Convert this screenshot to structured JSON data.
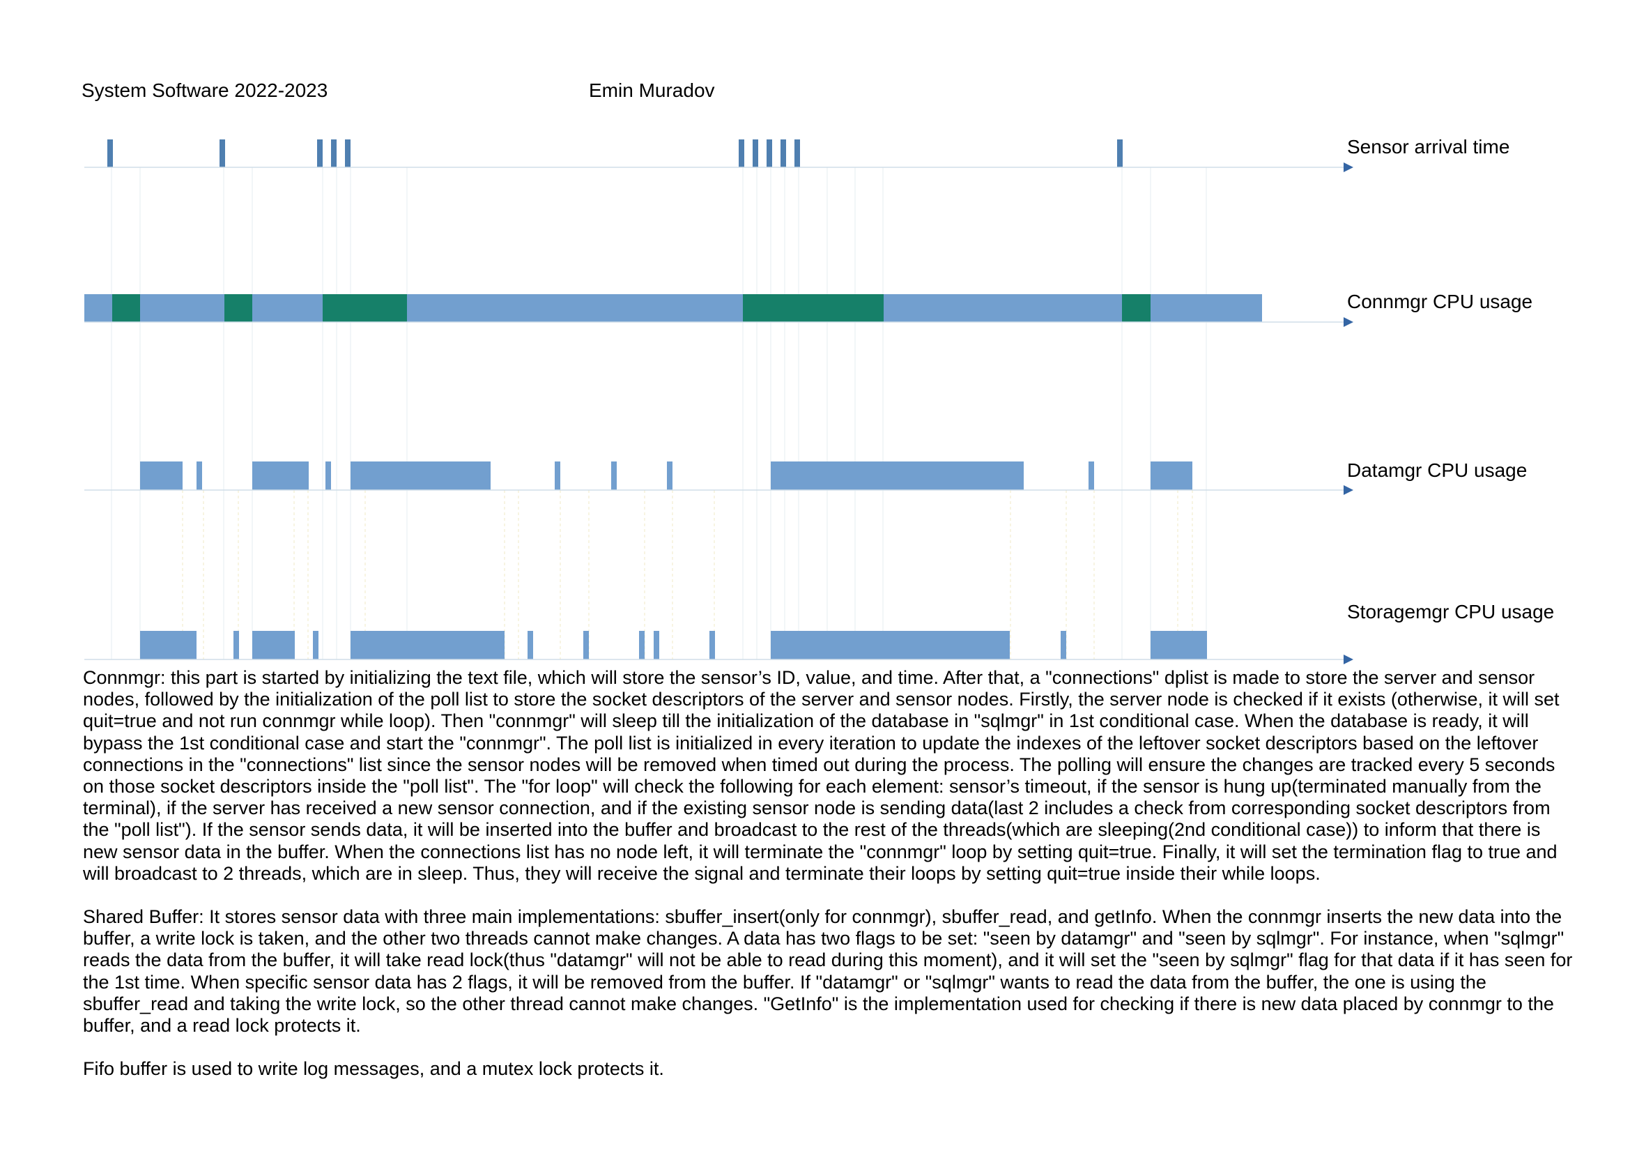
{
  "header": {
    "course": "System Software 2022-2023",
    "author": "Emin Muradov"
  },
  "colors": {
    "blue": "#729fcf",
    "mark": "#4f7fb0",
    "green": "#168069",
    "axis": "#d0dde8",
    "arrow": "#3465a4"
  },
  "tracks": [
    {
      "label": "Sensor arrival time"
    },
    {
      "label": "Connmgr CPU usage"
    },
    {
      "label": "Datamgr CPU usage"
    },
    {
      "label": "Storagemgr CPU usage"
    }
  ],
  "paragraphs": [
    "Connmgr: this part is started by initializing the text file, which will store the sensor’s ID, value, and time. After that, a \"connections\" dplist is made to store the server and sensor nodes, followed by the initialization of the poll list to store the socket descriptors of the server and sensor nodes. Firstly, the server node is checked if it exists (otherwise, it will set quit=true and not run connmgr while loop). Then \"connmgr\" will sleep till the initialization of the database in \"sqlmgr\" in 1st conditional case. When the database is ready, it will bypass the 1st conditional case and start the \"connmgr\". The poll list is initialized in every iteration to update the indexes of the leftover socket descriptors based on the leftover connections in the \"connections\" list since the sensor nodes will be removed when timed out during the process. The polling will ensure the changes are tracked every 5 seconds on those socket descriptors inside the \"poll list\". The \"for loop\" will check the following for each element: sensor’s timeout, if the sensor is hung up(terminated manually from the terminal), if the server has received a new sensor connection, and if the existing sensor node is sending data(last 2 includes a check from corresponding socket descriptors from the  \"poll list\"). If the sensor sends data, it will be inserted into the buffer and broadcast to the rest of the threads(which are sleeping(2nd conditional case)) to inform that there is new sensor data in the buffer. When the connections list has no node left, it will terminate the \"connmgr\" loop by setting quit=true. Finally, it will set the termination flag to true and will broadcast to 2 threads, which are in sleep. Thus, they will receive the signal and terminate their loops by setting quit=true inside their while loops.",
    "Shared Buffer: It stores sensor data with three main implementations: sbuffer_insert(only for connmgr), sbuffer_read, and getInfo. When the connmgr inserts the new data into the buffer, a write lock is taken, and the other two threads cannot make changes. A data has two flags to be set: \"seen by datamgr\" and \"seen by sqlmgr\". For instance, when \"sqlmgr\" reads the data from the buffer, it will take read lock(thus \"datamgr\" will not be able to read during this moment), and it will set the \"seen by sqlmgr\" flag for that data if it has seen for the 1st time. When specific sensor data has 2 flags, it will be removed from the buffer. If \"datamgr\" or \"sqlmgr\" wants to read the data from the buffer, the one is using the sbuffer_read and taking the write lock, so the other thread cannot make changes. \"GetInfo\" is the implementation used for checking if there is new data placed by connmgr to the buffer, and a read lock protects it.",
    "Fifo buffer is used to write log messages, and a mutex lock protects it."
  ]
}
